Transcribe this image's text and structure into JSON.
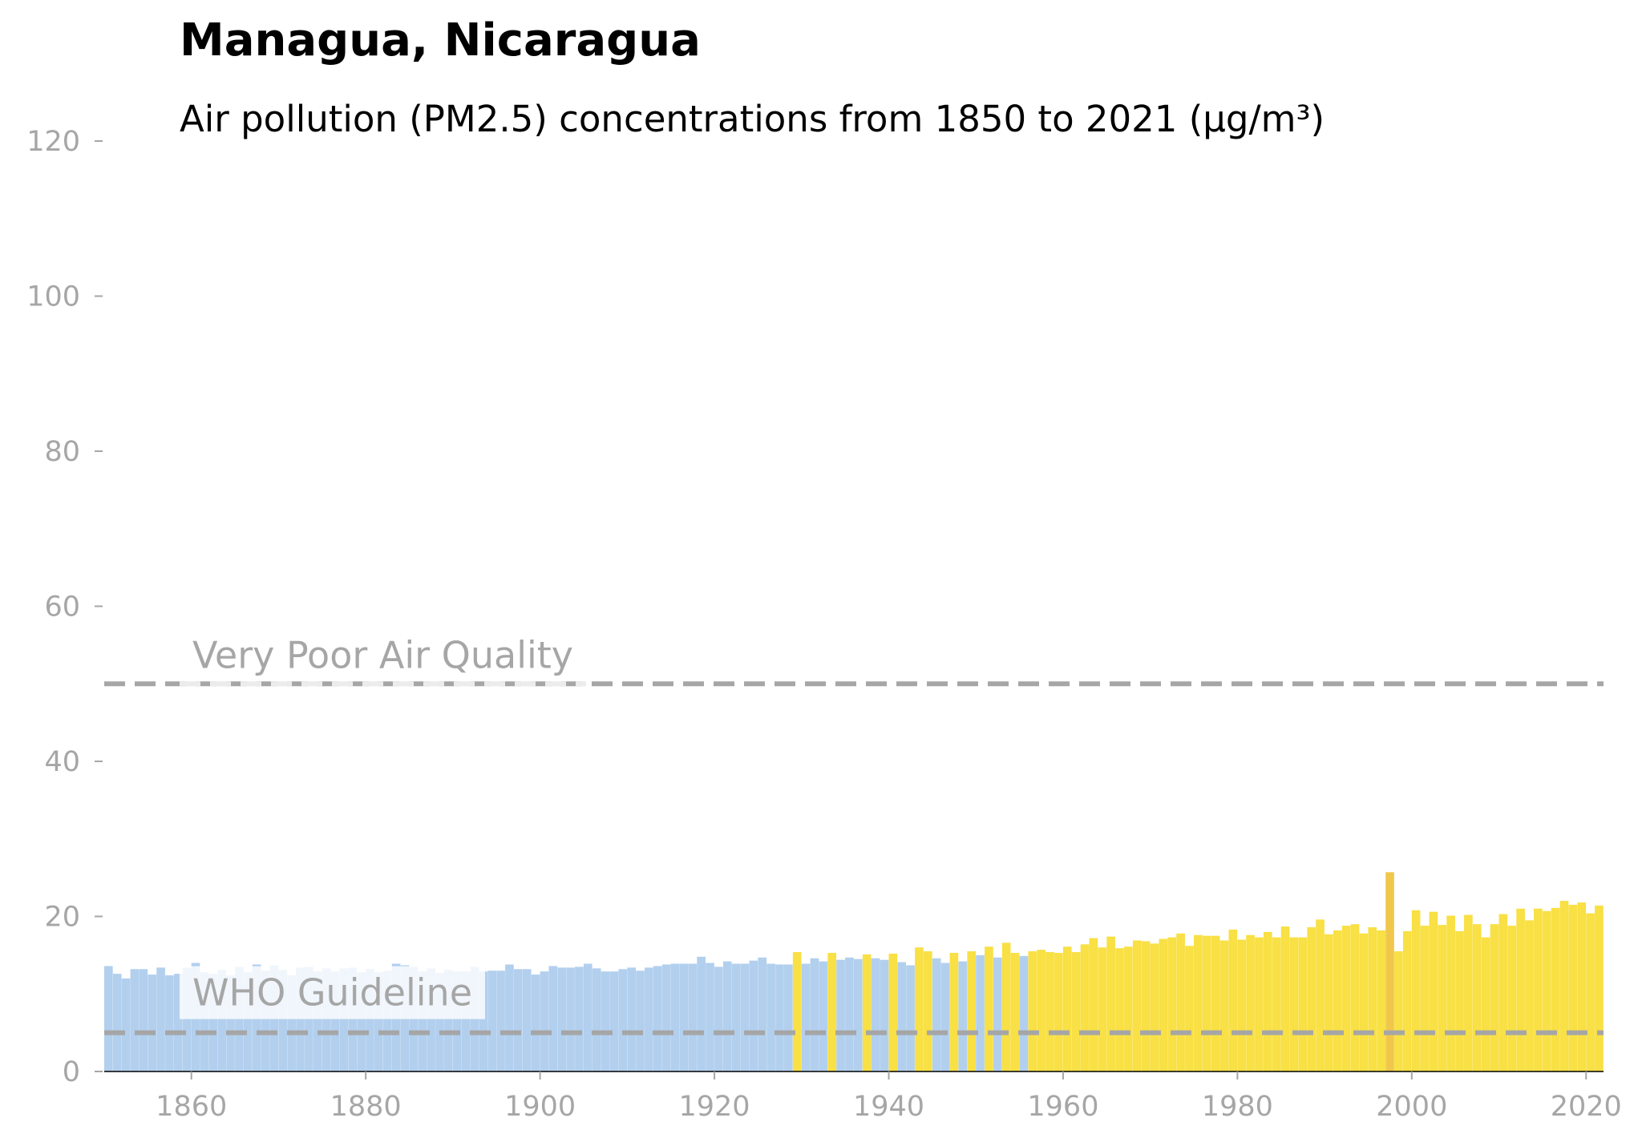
{
  "chart_data": {
    "type": "bar",
    "title": "Managua, Nicaragua",
    "subtitle": "Air pollution (PM2.5) concentrations from 1850 to 2021 (µg/m³)",
    "xlabel": "",
    "ylabel": "",
    "xlim": [
      1850,
      2022
    ],
    "ylim": [
      0,
      120
    ],
    "x_ticks": [
      1860,
      1880,
      1900,
      1920,
      1940,
      1960,
      1980,
      2000,
      2020
    ],
    "y_ticks": [
      0,
      20,
      40,
      60,
      80,
      100,
      120
    ],
    "grid": false,
    "start_year": 1850,
    "values": [
      13.6,
      12.6,
      12.0,
      13.2,
      13.2,
      12.5,
      13.4,
      12.4,
      12.6,
      13.4,
      14.0,
      12.8,
      12.6,
      13.1,
      12.4,
      13.5,
      12.8,
      13.8,
      13.0,
      13.6,
      13.1,
      12.4,
      13.4,
      13.5,
      12.9,
      13.3,
      12.9,
      13.3,
      13.4,
      12.8,
      13.2,
      12.8,
      13.0,
      13.9,
      13.7,
      13.5,
      12.9,
      13.3,
      12.7,
      13.1,
      12.9,
      12.9,
      13.5,
      12.9,
      13.0,
      13.0,
      13.8,
      13.2,
      13.2,
      12.5,
      12.9,
      13.6,
      13.4,
      13.4,
      13.5,
      13.9,
      13.3,
      12.9,
      12.9,
      13.2,
      13.4,
      13.0,
      13.4,
      13.6,
      13.8,
      13.9,
      13.9,
      13.9,
      14.8,
      14.0,
      13.5,
      14.2,
      13.9,
      13.9,
      14.3,
      14.7,
      13.9,
      13.8,
      13.8,
      15.4,
      13.9,
      14.6,
      14.2,
      15.3,
      14.4,
      14.7,
      14.5,
      15.1,
      14.6,
      14.4,
      15.2,
      14.1,
      13.7,
      16.0,
      15.5,
      14.6,
      14.0,
      15.3,
      14.2,
      15.5,
      15.0,
      16.1,
      14.7,
      16.6,
      15.3,
      14.9,
      15.5,
      15.7,
      15.4,
      15.3,
      16.1,
      15.4,
      16.4,
      17.2,
      16.0,
      17.4,
      15.9,
      16.1,
      16.9,
      16.8,
      16.5,
      17.1,
      17.3,
      17.8,
      16.2,
      17.6,
      17.5,
      17.5,
      16.9,
      18.3,
      17.0,
      17.6,
      17.3,
      18.0,
      17.3,
      18.7,
      17.3,
      17.3,
      18.6,
      19.6,
      17.7,
      18.2,
      18.8,
      19.0,
      17.8,
      18.6,
      18.2,
      25.7,
      15.5,
      18.1,
      20.8,
      18.8,
      20.6,
      18.9,
      20.1,
      18.1,
      20.2,
      19.0,
      17.3,
      19.0,
      20.3,
      18.8,
      21.0,
      19.5,
      21.0,
      20.7,
      21.1,
      22.0,
      21.5,
      21.8,
      20.4,
      21.4
    ],
    "color_bands": [
      {
        "max": 15,
        "color": "#b2cfee"
      },
      {
        "max": 25,
        "color": "#f8e045"
      },
      {
        "max": 999,
        "color": "#f1c74b"
      }
    ],
    "reference_lines": [
      {
        "label": "Very Poor Air Quality",
        "value": 50
      },
      {
        "label": "WHO Guideline",
        "value": 5
      }
    ]
  }
}
